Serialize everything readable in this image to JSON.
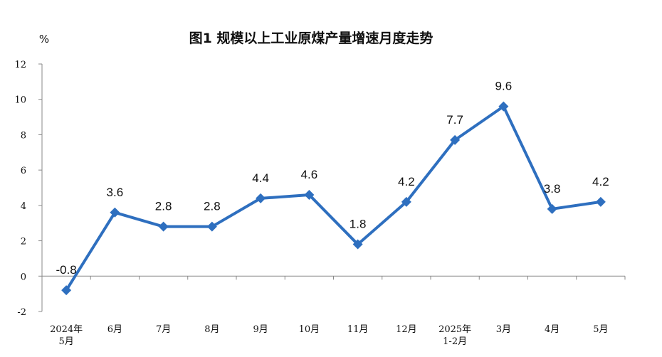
{
  "chart_data": {
    "type": "line",
    "title": "图1  规模以上工业原煤产量增速月度走势",
    "unit": "%",
    "categories": [
      [
        "2024年",
        "5月"
      ],
      [
        "6月"
      ],
      [
        "7月"
      ],
      [
        "8月"
      ],
      [
        "9月"
      ],
      [
        "10月"
      ],
      [
        "11月"
      ],
      [
        "12月"
      ],
      [
        "2025年",
        "1-2月"
      ],
      [
        "3月"
      ],
      [
        "4月"
      ],
      [
        "5月"
      ]
    ],
    "series": [
      {
        "values": [
          -0.8,
          3.6,
          2.8,
          2.8,
          4.4,
          4.6,
          1.8,
          4.2,
          7.7,
          9.6,
          3.8,
          4.2
        ],
        "labels": [
          "-0.8",
          "3.6",
          "2.8",
          "2.8",
          "4.4",
          "4.6",
          "1.8",
          "4.2",
          "7.7",
          "9.6",
          "3.8",
          "4.2"
        ],
        "color": "#2E6FBF",
        "marker": "diamond"
      }
    ],
    "ylim": [
      -2,
      12
    ],
    "yticks": [
      -2,
      0,
      2,
      4,
      6,
      8,
      10,
      12
    ],
    "grid": false,
    "legend": "none"
  }
}
